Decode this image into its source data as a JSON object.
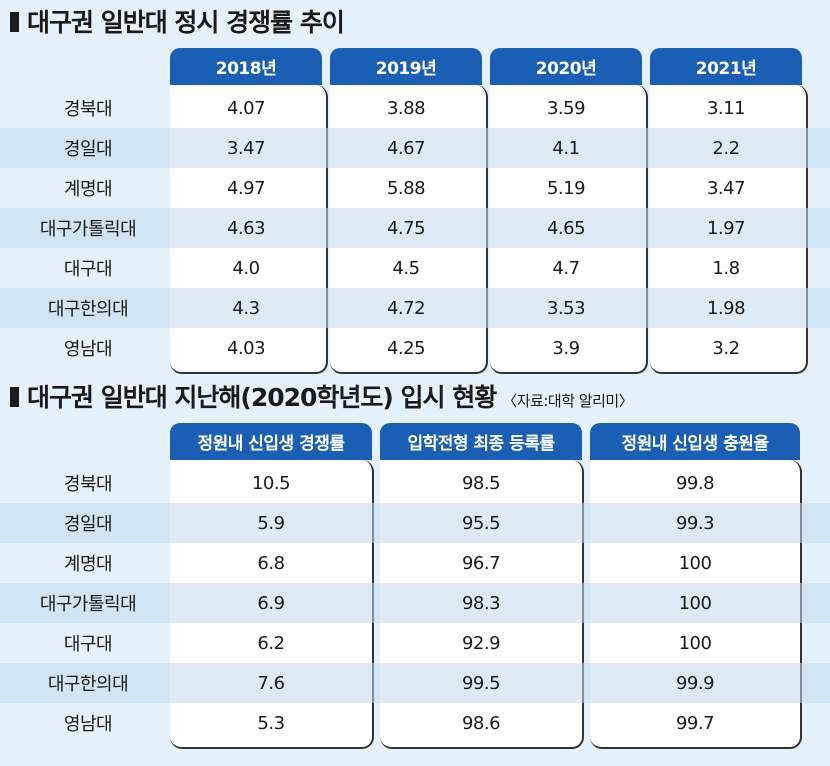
{
  "section1": {
    "title": "대구권 일반대 정시 경쟁률 추이",
    "headers": [
      "2018년",
      "2019년",
      "2020년",
      "2021년"
    ],
    "rows": [
      {
        "name": "경북대",
        "values": [
          "4.07",
          "3.88",
          "3.59",
          "3.11"
        ]
      },
      {
        "name": "경일대",
        "values": [
          "3.47",
          "4.67",
          "4.1",
          "2.2"
        ]
      },
      {
        "name": "계명대",
        "values": [
          "4.97",
          "5.88",
          "5.19",
          "3.47"
        ]
      },
      {
        "name": "대구가톨릭대",
        "values": [
          "4.63",
          "4.75",
          "4.65",
          "1.97"
        ]
      },
      {
        "name": "대구대",
        "values": [
          "4.0",
          "4.5",
          "4.7",
          "1.8"
        ]
      },
      {
        "name": "대구한의대",
        "values": [
          "4.3",
          "4.72",
          "3.53",
          "1.98"
        ]
      },
      {
        "name": "영남대",
        "values": [
          "4.03",
          "4.25",
          "3.9",
          "3.2"
        ]
      }
    ]
  },
  "section2": {
    "title": "대구권 일반대 지난해(2020학년도) 입시 현황",
    "source": "〈자료:대학 알리미〉",
    "headers": [
      "정원내 신입생 경쟁률",
      "입학전형 최종 등록률",
      "정원내 신입생 충원율"
    ],
    "rows": [
      {
        "name": "경북대",
        "values": [
          "10.5",
          "98.5",
          "99.8"
        ]
      },
      {
        "name": "경일대",
        "values": [
          "5.9",
          "95.5",
          "99.3"
        ]
      },
      {
        "name": "계명대",
        "values": [
          "6.8",
          "96.7",
          "100"
        ]
      },
      {
        "name": "대구가톨릭대",
        "values": [
          "6.9",
          "98.3",
          "100"
        ]
      },
      {
        "name": "대구대",
        "values": [
          "6.2",
          "92.9",
          "100"
        ]
      },
      {
        "name": "대구한의대",
        "values": [
          "7.6",
          "99.5",
          "99.9"
        ]
      },
      {
        "name": "영남대",
        "values": [
          "5.3",
          "98.6",
          "99.7"
        ]
      }
    ]
  },
  "chart_data": [
    {
      "type": "table",
      "title": "대구권 일반대 정시 경쟁률 추이",
      "columns": [
        "2018년",
        "2019년",
        "2020년",
        "2021년"
      ],
      "rows": [
        "경북대",
        "경일대",
        "계명대",
        "대구가톨릭대",
        "대구대",
        "대구한의대",
        "영남대"
      ],
      "values": [
        [
          4.07,
          3.88,
          3.59,
          3.11
        ],
        [
          3.47,
          4.67,
          4.1,
          2.2
        ],
        [
          4.97,
          5.88,
          5.19,
          3.47
        ],
        [
          4.63,
          4.75,
          4.65,
          1.97
        ],
        [
          4.0,
          4.5,
          4.7,
          1.8
        ],
        [
          4.3,
          4.72,
          3.53,
          1.98
        ],
        [
          4.03,
          4.25,
          3.9,
          3.2
        ]
      ]
    },
    {
      "type": "table",
      "title": "대구권 일반대 지난해(2020학년도) 입시 현황",
      "columns": [
        "정원내 신입생 경쟁률",
        "입학전형 최종 등록률",
        "정원내 신입생 충원율"
      ],
      "rows": [
        "경북대",
        "경일대",
        "계명대",
        "대구가톨릭대",
        "대구대",
        "대구한의대",
        "영남대"
      ],
      "values": [
        [
          10.5,
          98.5,
          99.8
        ],
        [
          5.9,
          95.5,
          99.3
        ],
        [
          6.8,
          96.7,
          100
        ],
        [
          6.9,
          98.3,
          100
        ],
        [
          6.2,
          92.9,
          100
        ],
        [
          7.6,
          99.5,
          99.9
        ],
        [
          5.3,
          98.6,
          99.7
        ]
      ]
    }
  ]
}
